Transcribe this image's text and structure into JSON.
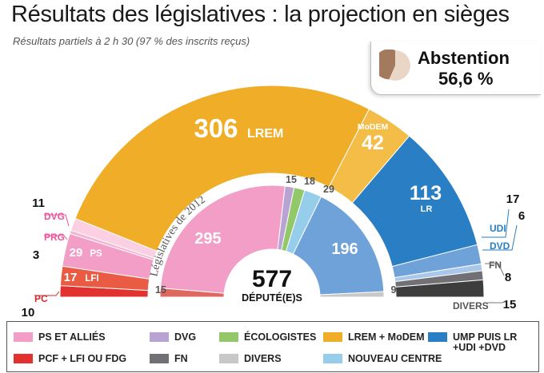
{
  "title": "Résultats des législatives :  la projection en sièges",
  "subtitle": "Résultats partiels à 2 h 30 (97 % des inscrits reçus)",
  "abstention": {
    "label": "Abstention",
    "value": "56,6 %",
    "fraction": 0.566
  },
  "center": {
    "total": "577",
    "label": "DÉPUTÉ(E)S"
  },
  "inner_label": "Législatives de 2012",
  "colors": {
    "ps": "#f29ec6",
    "pcf": "#e2312f",
    "dvg": "#b8a3d2",
    "eco": "#93c86a",
    "lrem": "#efad28",
    "modem": "#f3bd48",
    "ump": "#2a7ec3",
    "lr_light": "#6fa2d9",
    "fn": "#707075",
    "divers": "#3d3d3d",
    "divers_gray": "#c8c8c8",
    "nc": "#95cdea",
    "pink_lbl": "#e8559a",
    "red_lbl": "#d42a2a",
    "blue_lbl": "#2a7ec3"
  },
  "chart_data": [
    {
      "type": "pie",
      "title": "2017",
      "total": 577,
      "categories": [
        "PC",
        "LFI",
        "PS",
        "PRG",
        "DVG",
        "LREM",
        "MoDEM",
        "LR",
        "UDI",
        "DVD",
        "FN",
        "DIVERS"
      ],
      "values": [
        10,
        17,
        29,
        3,
        11,
        306,
        42,
        113,
        17,
        6,
        8,
        15
      ],
      "labels": [
        "10",
        "17",
        "29",
        "3",
        "11",
        "306",
        "42",
        "113",
        "17",
        "6",
        "8",
        "15"
      ]
    },
    {
      "type": "pie",
      "title": "Législatives de 2012",
      "total": 577,
      "categories": [
        "PCF + LFI OU FDG",
        "PS ET ALLIÉS",
        "DVG",
        "ÉCOLOGISTES",
        "NOUVEAU CENTRE",
        "UMP PUIS LR +UDI +DVD",
        "DIVERS"
      ],
      "values": [
        15,
        295,
        15,
        18,
        29,
        196,
        9
      ],
      "labels": [
        "15",
        "295",
        "15",
        "18",
        "29",
        "196",
        "9"
      ]
    }
  ],
  "outer_labels": {
    "lrem": "LREM",
    "modem": "MoDEM",
    "lr": "LR",
    "ps": "PS",
    "lfi": "LFI",
    "dvg": "DVG",
    "prg": "PRG",
    "pc": "PC",
    "udi": "UDI",
    "dvd": "DVD",
    "fn": "FN",
    "divers": "DIVERS"
  },
  "legend": [
    {
      "label": "PS ET ALLIÉS",
      "color": "#f29ec6"
    },
    {
      "label": "DVG",
      "color": "#b8a3d2"
    },
    {
      "label": "ÉCOLOGISTES",
      "color": "#93c86a"
    },
    {
      "label": "LREM + MoDEM",
      "color": "#efad28"
    },
    {
      "label": "UMP PUIS LR +UDI +DVD",
      "color": "#2a7ec3"
    },
    {
      "label": "PCF + LFI OU FDG",
      "color": "#e2312f"
    },
    {
      "label": "FN",
      "color": "#707075"
    },
    {
      "label": "DIVERS",
      "color": "#c8c8c8"
    },
    {
      "label": "NOUVEAU CENTRE",
      "color": "#95cdea"
    }
  ]
}
